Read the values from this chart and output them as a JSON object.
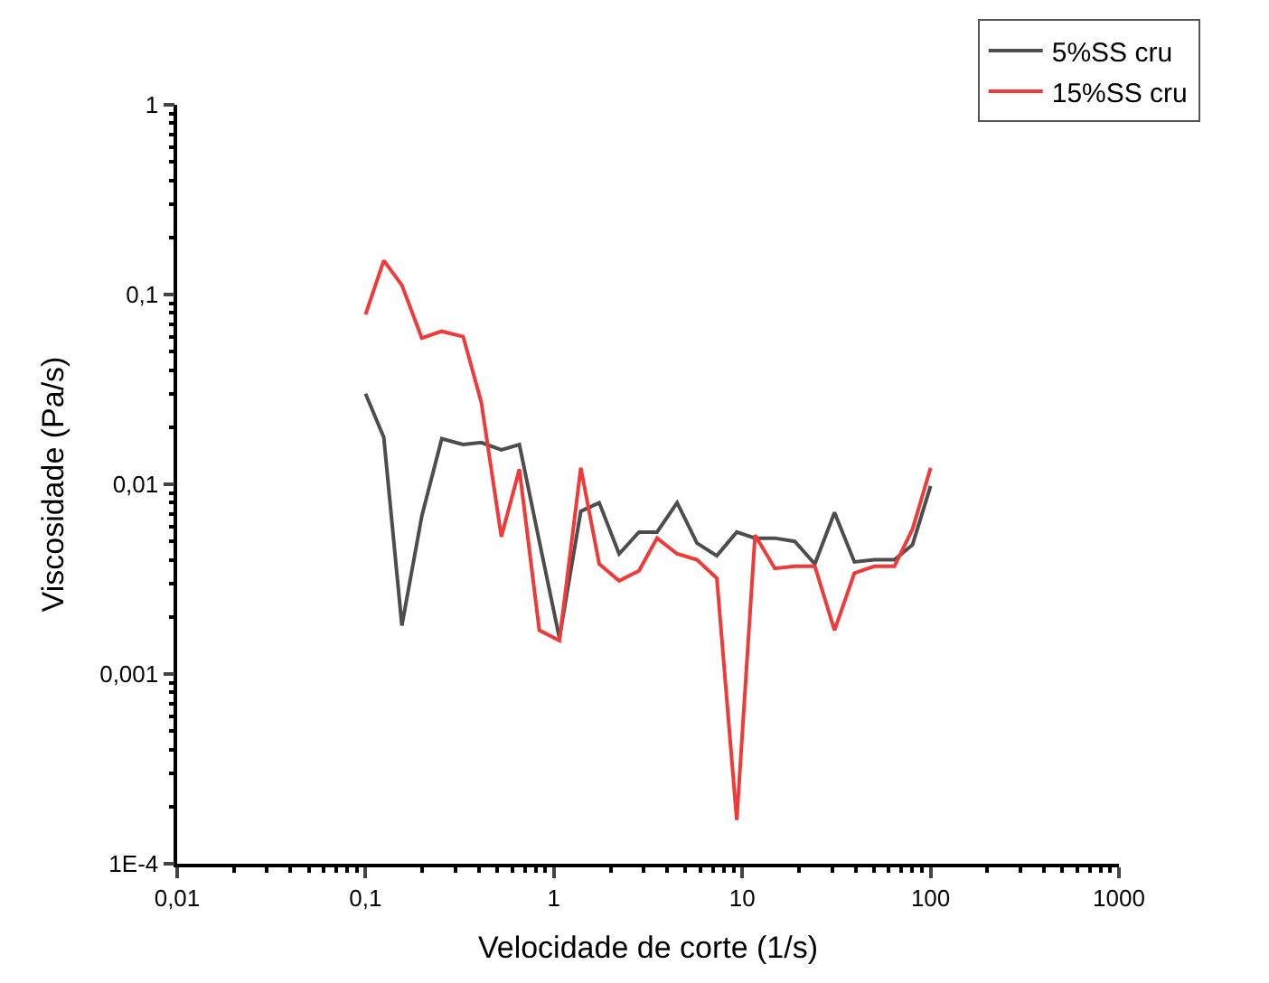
{
  "chart_data": {
    "type": "line",
    "xlabel": "Velocidade de corte (1/s)",
    "ylabel": "Viscosidade (Pa/s)",
    "x": [
      0.1,
      0.125,
      0.156,
      0.199,
      0.254,
      0.33,
      0.412,
      0.526,
      0.656,
      0.837,
      1.07,
      1.39,
      1.74,
      2.22,
      2.83,
      3.53,
      4.51,
      5.75,
      7.33,
      9.35,
      11.7,
      14.9,
      19.0,
      24.3,
      30.9,
      39.4,
      50.4,
      64.3,
      80.2,
      100
    ],
    "series": [
      {
        "name": "5%SS cru",
        "color": "#4d4d4d",
        "values": [
          0.03,
          0.0177,
          0.0018,
          0.0068,
          0.0174,
          0.0162,
          0.0166,
          0.0152,
          0.0162,
          0.005,
          0.00155,
          0.0072,
          0.008,
          0.0043,
          0.0056,
          0.0056,
          0.008,
          0.0049,
          0.0042,
          0.0056,
          0.0052,
          0.0052,
          0.005,
          0.0038,
          0.0071,
          0.0039,
          0.004,
          0.004,
          0.0048,
          0.0098
        ]
      },
      {
        "name": "15%SS cru",
        "color": "#f03a3a",
        "values": [
          0.0785,
          0.151,
          0.112,
          0.059,
          0.064,
          0.06,
          0.027,
          0.0053,
          0.012,
          0.0017,
          0.0015,
          0.0122,
          0.0038,
          0.0031,
          0.0035,
          0.0052,
          0.0043,
          0.004,
          0.0032,
          0.00017,
          0.0054,
          0.0036,
          0.0037,
          0.0037,
          0.0017,
          0.0034,
          0.0037,
          0.0037,
          0.0058,
          0.0122
        ]
      }
    ],
    "log": "xy",
    "xlim": [
      0.01,
      1000
    ],
    "ylim": [
      0.0001,
      1
    ],
    "xticks": [
      {
        "value": 0.01,
        "label": "0,01"
      },
      {
        "value": 0.1,
        "label": "0,1"
      },
      1,
      10,
      100,
      1000
    ],
    "yticks": [
      {
        "value": 0.0001,
        "label": "1E-4"
      },
      {
        "value": 0.001,
        "label": "0,001"
      },
      {
        "value": 0.01,
        "label": "0,01"
      },
      {
        "value": 0.1,
        "label": "0,1"
      },
      1
    ],
    "legend": "top right",
    "marker": "none",
    "line_style": "solid"
  }
}
